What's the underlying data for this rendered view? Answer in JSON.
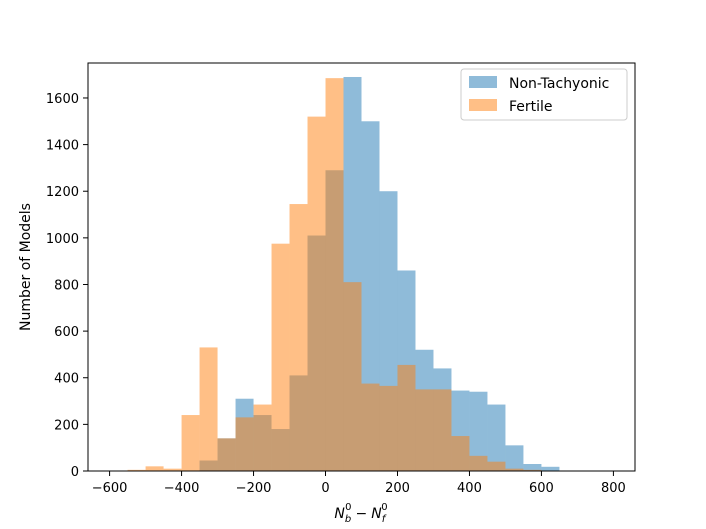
{
  "chart_data": {
    "type": "bar",
    "subtype": "overlapping-histogram",
    "title": "",
    "xlabel": "N_b^0 − N_f^0",
    "xlabel_parts": {
      "base1": "N",
      "sub1": "b",
      "sup1": "0",
      "minus": "−",
      "base2": "N",
      "sub2": "f",
      "sup2": "0"
    },
    "ylabel": "Number of Models",
    "xlim": [
      -660,
      860
    ],
    "ylim": [
      0,
      1750
    ],
    "xticks": [
      -600,
      -400,
      -200,
      0,
      200,
      400,
      600,
      800
    ],
    "xtick_labels": [
      "−600",
      "−400",
      "−200",
      "0",
      "200",
      "400",
      "600",
      "800"
    ],
    "yticks": [
      0,
      200,
      400,
      600,
      800,
      1000,
      1200,
      1400,
      1600
    ],
    "ytick_labels": [
      "0",
      "200",
      "400",
      "600",
      "800",
      "1000",
      "1200",
      "1400",
      "1600"
    ],
    "grid": false,
    "legend_position": "top-right",
    "series": [
      {
        "name": "Non-Tachyonic",
        "color": "#1f77b4",
        "alpha": 0.5,
        "bins": [
          {
            "x0": -350,
            "x1": -300,
            "value": 45
          },
          {
            "x0": -300,
            "x1": -250,
            "value": 140
          },
          {
            "x0": -250,
            "x1": -200,
            "value": 310
          },
          {
            "x0": -200,
            "x1": -150,
            "value": 240
          },
          {
            "x0": -150,
            "x1": -100,
            "value": 180
          },
          {
            "x0": -100,
            "x1": -50,
            "value": 410
          },
          {
            "x0": -50,
            "x1": 0,
            "value": 1010
          },
          {
            "x0": 0,
            "x1": 50,
            "value": 1290
          },
          {
            "x0": 50,
            "x1": 100,
            "value": 1690
          },
          {
            "x0": 100,
            "x1": 150,
            "value": 1500
          },
          {
            "x0": 150,
            "x1": 200,
            "value": 1200
          },
          {
            "x0": 200,
            "x1": 250,
            "value": 860
          },
          {
            "x0": 250,
            "x1": 300,
            "value": 520
          },
          {
            "x0": 300,
            "x1": 350,
            "value": 440
          },
          {
            "x0": 350,
            "x1": 400,
            "value": 345
          },
          {
            "x0": 400,
            "x1": 450,
            "value": 340
          },
          {
            "x0": 450,
            "x1": 500,
            "value": 285
          },
          {
            "x0": 500,
            "x1": 550,
            "value": 110
          },
          {
            "x0": 550,
            "x1": 600,
            "value": 30
          },
          {
            "x0": 600,
            "x1": 650,
            "value": 18
          }
        ]
      },
      {
        "name": "Fertile",
        "color": "#ff7f0e",
        "alpha": 0.5,
        "bins": [
          {
            "x0": -550,
            "x1": -500,
            "value": 5
          },
          {
            "x0": -500,
            "x1": -450,
            "value": 20
          },
          {
            "x0": -450,
            "x1": -400,
            "value": 10
          },
          {
            "x0": -400,
            "x1": -350,
            "value": 240
          },
          {
            "x0": -350,
            "x1": -300,
            "value": 530
          },
          {
            "x0": -300,
            "x1": -250,
            "value": 140
          },
          {
            "x0": -250,
            "x1": -200,
            "value": 230
          },
          {
            "x0": -200,
            "x1": -150,
            "value": 285
          },
          {
            "x0": -150,
            "x1": -100,
            "value": 975
          },
          {
            "x0": -100,
            "x1": -50,
            "value": 1145
          },
          {
            "x0": -50,
            "x1": 0,
            "value": 1520
          },
          {
            "x0": 0,
            "x1": 50,
            "value": 1685
          },
          {
            "x0": 50,
            "x1": 100,
            "value": 810
          },
          {
            "x0": 100,
            "x1": 150,
            "value": 375
          },
          {
            "x0": 150,
            "x1": 200,
            "value": 365
          },
          {
            "x0": 200,
            "x1": 250,
            "value": 455
          },
          {
            "x0": 250,
            "x1": 300,
            "value": 350
          },
          {
            "x0": 300,
            "x1": 350,
            "value": 350
          },
          {
            "x0": 350,
            "x1": 400,
            "value": 150
          },
          {
            "x0": 400,
            "x1": 450,
            "value": 65
          },
          {
            "x0": 450,
            "x1": 500,
            "value": 40
          },
          {
            "x0": 500,
            "x1": 550,
            "value": 10
          },
          {
            "x0": 550,
            "x1": 600,
            "value": 5
          }
        ]
      }
    ]
  }
}
